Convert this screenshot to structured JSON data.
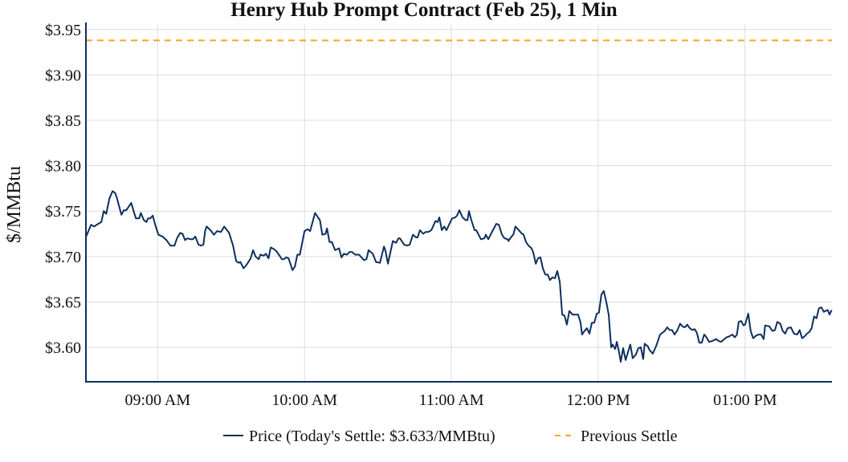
{
  "chart_data": {
    "type": "line",
    "title": "Henry Hub Prompt Contract (Feb 25), 1 Min",
    "xlabel": "",
    "ylabel": "$/MMBtu",
    "x_unit": "minutes since 09:00 AM",
    "xlim": [
      -29.3,
      275.5
    ],
    "ylim": [
      3.562,
      3.956
    ],
    "grid": true,
    "legend_position": "bottom-center",
    "y_ticks": [
      3.6,
      3.65,
      3.7,
      3.75,
      3.8,
      3.85,
      3.9,
      3.95
    ],
    "y_tick_labels": [
      "$3.60",
      "$3.65",
      "$3.70",
      "$3.75",
      "$3.80",
      "$3.85",
      "$3.90",
      "$3.95"
    ],
    "x_ticks": [
      0,
      60,
      120,
      180,
      240
    ],
    "x_tick_labels": [
      "09:00 AM",
      "10:00 AM",
      "11:00 AM",
      "12:00 PM",
      "01:00 PM"
    ],
    "series": [
      {
        "name": "Price (Today's Settle: $3.633/MMBtu)",
        "color": "#0d2f5e",
        "style": "solid",
        "points": [
          [
            -29.2,
            3.722
          ],
          [
            -27.2,
            3.735
          ],
          [
            -25.9,
            3.733
          ],
          [
            -24.9,
            3.735
          ],
          [
            -23,
            3.738
          ],
          [
            -22,
            3.75
          ],
          [
            -21,
            3.747
          ],
          [
            -19.7,
            3.764
          ],
          [
            -18.4,
            3.772
          ],
          [
            -17.4,
            3.77
          ],
          [
            -16.7,
            3.765
          ],
          [
            -14.8,
            3.746
          ],
          [
            -13.8,
            3.751
          ],
          [
            -12.8,
            3.751
          ],
          [
            -10.8,
            3.759
          ],
          [
            -9.8,
            3.75
          ],
          [
            -8.9,
            3.742
          ],
          [
            -7.5,
            3.742
          ],
          [
            -6.9,
            3.748
          ],
          [
            -5.6,
            3.74
          ],
          [
            -4.6,
            3.738
          ],
          [
            -3.9,
            3.742
          ],
          [
            -3,
            3.742
          ],
          [
            -2,
            3.745
          ],
          [
            -1,
            3.735
          ],
          [
            0.3,
            3.724
          ],
          [
            2,
            3.722
          ],
          [
            3.6,
            3.718
          ],
          [
            5.2,
            3.712
          ],
          [
            6.9,
            3.712
          ],
          [
            7.9,
            3.72
          ],
          [
            9.2,
            3.726
          ],
          [
            10.2,
            3.725
          ],
          [
            11.2,
            3.718
          ],
          [
            12.1,
            3.72
          ],
          [
            13.4,
            3.719
          ],
          [
            14.4,
            3.719
          ],
          [
            15.4,
            3.722
          ],
          [
            16.7,
            3.713
          ],
          [
            17.7,
            3.712
          ],
          [
            18.7,
            3.713
          ],
          [
            19.4,
            3.728
          ],
          [
            20,
            3.733
          ],
          [
            21.6,
            3.729
          ],
          [
            23,
            3.724
          ],
          [
            24.3,
            3.728
          ],
          [
            25.9,
            3.727
          ],
          [
            27.2,
            3.733
          ],
          [
            29.2,
            3.726
          ],
          [
            30.8,
            3.712
          ],
          [
            32.1,
            3.695
          ],
          [
            33.1,
            3.693
          ],
          [
            33.8,
            3.694
          ],
          [
            35.1,
            3.687
          ],
          [
            36.4,
            3.691
          ],
          [
            38,
            3.698
          ],
          [
            39,
            3.707
          ],
          [
            40,
            3.7
          ],
          [
            41.3,
            3.697
          ],
          [
            42,
            3.702
          ],
          [
            43.3,
            3.701
          ],
          [
            44.3,
            3.703
          ],
          [
            45.3,
            3.698
          ],
          [
            46.2,
            3.71
          ],
          [
            47.6,
            3.708
          ],
          [
            48.5,
            3.706
          ],
          [
            49.5,
            3.702
          ],
          [
            50.8,
            3.697
          ],
          [
            51.5,
            3.697
          ],
          [
            52.5,
            3.699
          ],
          [
            53.5,
            3.698
          ],
          [
            55.1,
            3.685
          ],
          [
            56.1,
            3.689
          ],
          [
            57.1,
            3.702
          ],
          [
            58.1,
            3.702
          ],
          [
            60,
            3.728
          ],
          [
            61.3,
            3.73
          ],
          [
            62.3,
            3.728
          ],
          [
            64.3,
            3.748
          ],
          [
            65.3,
            3.744
          ],
          [
            66.3,
            3.74
          ],
          [
            67.3,
            3.724
          ],
          [
            68.6,
            3.725
          ],
          [
            69.2,
            3.731
          ],
          [
            70.2,
            3.716
          ],
          [
            71.2,
            3.716
          ],
          [
            72.5,
            3.707
          ],
          [
            74.1,
            3.709
          ],
          [
            75.1,
            3.699
          ],
          [
            76.1,
            3.703
          ],
          [
            77.4,
            3.702
          ],
          [
            78.4,
            3.705
          ],
          [
            79.4,
            3.705
          ],
          [
            80.7,
            3.702
          ],
          [
            82.3,
            3.702
          ],
          [
            84.3,
            3.696
          ],
          [
            85.3,
            3.697
          ],
          [
            86.2,
            3.707
          ],
          [
            87.9,
            3.703
          ],
          [
            89.2,
            3.694
          ],
          [
            90.8,
            3.693
          ],
          [
            92.5,
            3.711
          ],
          [
            93.1,
            3.706
          ],
          [
            94.1,
            3.692
          ],
          [
            96.1,
            3.717
          ],
          [
            97.4,
            3.715
          ],
          [
            98.4,
            3.72
          ],
          [
            99.0,
            3.72
          ],
          [
            100.7,
            3.713
          ],
          [
            102.0,
            3.712
          ],
          [
            103.0,
            3.713
          ],
          [
            104.3,
            3.724
          ],
          [
            105.6,
            3.721
          ],
          [
            106.2,
            3.721
          ],
          [
            107.2,
            3.729
          ],
          [
            108.5,
            3.725
          ],
          [
            109.5,
            3.727
          ],
          [
            110.5,
            3.727
          ],
          [
            111.8,
            3.729
          ],
          [
            112.5,
            3.733
          ],
          [
            113.5,
            3.739
          ],
          [
            114.4,
            3.738
          ],
          [
            115.1,
            3.743
          ],
          [
            116.1,
            3.729
          ],
          [
            117.1,
            3.733
          ],
          [
            118.0,
            3.729
          ],
          [
            120.3,
            3.742
          ],
          [
            121.6,
            3.743
          ],
          [
            122.3,
            3.745
          ],
          [
            123.3,
            3.751
          ],
          [
            124.6,
            3.743
          ],
          [
            125.9,
            3.74
          ],
          [
            126.6,
            3.74
          ],
          [
            127.2,
            3.75
          ],
          [
            128.2,
            3.74
          ],
          [
            129.5,
            3.729
          ],
          [
            130.2,
            3.729
          ],
          [
            132.1,
            3.719
          ],
          [
            133.5,
            3.72
          ],
          [
            134.1,
            3.724
          ],
          [
            135.1,
            3.719
          ],
          [
            136.4,
            3.726
          ],
          [
            138.4,
            3.736
          ],
          [
            139.4,
            3.735
          ],
          [
            140.7,
            3.724
          ],
          [
            141.7,
            3.72
          ],
          [
            143.0,
            3.719
          ],
          [
            143.3,
            3.717
          ],
          [
            144.6,
            3.722
          ],
          [
            145.3,
            3.724
          ],
          [
            146.2,
            3.733
          ],
          [
            147.9,
            3.728
          ],
          [
            148.5,
            3.726
          ],
          [
            149.5,
            3.724
          ],
          [
            150.5,
            3.716
          ],
          [
            151.5,
            3.712
          ],
          [
            152.8,
            3.709
          ],
          [
            153.5,
            3.704
          ],
          [
            154.5,
            3.692
          ],
          [
            155.4,
            3.698
          ],
          [
            156.4,
            3.699
          ],
          [
            157.4,
            3.687
          ],
          [
            158.4,
            3.68
          ],
          [
            159.4,
            3.68
          ],
          [
            160.3,
            3.674
          ],
          [
            161.3,
            3.677
          ],
          [
            162.3,
            3.676
          ],
          [
            163.3,
            3.684
          ],
          [
            164.3,
            3.672
          ],
          [
            165.3,
            3.636
          ],
          [
            166.2,
            3.635
          ],
          [
            167.2,
            3.625
          ],
          [
            168.2,
            3.64
          ],
          [
            169.5,
            3.636
          ],
          [
            170.8,
            3.636
          ],
          [
            171.8,
            3.636
          ],
          [
            172.8,
            3.627
          ],
          [
            173.4,
            3.614
          ],
          [
            174.4,
            3.618
          ],
          [
            175.4,
            3.621
          ],
          [
            176.4,
            3.615
          ],
          [
            177.4,
            3.627
          ],
          [
            178.4,
            3.627
          ],
          [
            179.4,
            3.637
          ],
          [
            180.3,
            3.638
          ],
          [
            181.3,
            3.658
          ],
          [
            182.3,
            3.662
          ],
          [
            183.3,
            3.65
          ],
          [
            184.3,
            3.636
          ],
          [
            185.3,
            3.6
          ],
          [
            185.9,
            3.603
          ],
          [
            186.9,
            3.598
          ],
          [
            187.6,
            3.606
          ],
          [
            188.5,
            3.595
          ],
          [
            189.2,
            3.584
          ],
          [
            190.2,
            3.599
          ],
          [
            191.2,
            3.586
          ],
          [
            193.1,
            3.603
          ],
          [
            194.1,
            3.588
          ],
          [
            195.4,
            3.592
          ],
          [
            196.4,
            3.599
          ],
          [
            197.4,
            3.6
          ],
          [
            198.4,
            3.587
          ],
          [
            199.0,
            3.604
          ],
          [
            200.3,
            3.601
          ],
          [
            201.0,
            3.597
          ],
          [
            202.3,
            3.593
          ],
          [
            203.6,
            3.601
          ],
          [
            205.3,
            3.614
          ],
          [
            206.2,
            3.616
          ],
          [
            207.2,
            3.618
          ],
          [
            208.2,
            3.622
          ],
          [
            209.2,
            3.619
          ],
          [
            210.2,
            3.619
          ],
          [
            211.2,
            3.614
          ],
          [
            212.2,
            3.618
          ],
          [
            213.5,
            3.626
          ],
          [
            214.4,
            3.623
          ],
          [
            215.4,
            3.622
          ],
          [
            216.4,
            3.625
          ],
          [
            217.1,
            3.622
          ],
          [
            218.4,
            3.619
          ],
          [
            219.4,
            3.62
          ],
          [
            220.3,
            3.616
          ],
          [
            221.3,
            3.605
          ],
          [
            222.3,
            3.605
          ],
          [
            223.3,
            3.614
          ],
          [
            224.0,
            3.612
          ],
          [
            225.3,
            3.606
          ],
          [
            226.6,
            3.607
          ],
          [
            228.2,
            3.609
          ],
          [
            229.2,
            3.607
          ],
          [
            230.2,
            3.606
          ],
          [
            231.5,
            3.609
          ],
          [
            232.5,
            3.611
          ],
          [
            233.5,
            3.612
          ],
          [
            234.8,
            3.614
          ],
          [
            235.8,
            3.611
          ],
          [
            236.7,
            3.614
          ],
          [
            237.4,
            3.628
          ],
          [
            238.4,
            3.629
          ],
          [
            239.4,
            3.624
          ],
          [
            240.0,
            3.625
          ],
          [
            241.3,
            3.637
          ],
          [
            242.3,
            3.618
          ],
          [
            243.3,
            3.61
          ],
          [
            244.6,
            3.613
          ],
          [
            245.6,
            3.614
          ],
          [
            246.6,
            3.614
          ],
          [
            247.6,
            3.609
          ],
          [
            248.2,
            3.624
          ],
          [
            249.9,
            3.623
          ],
          [
            251.2,
            3.618
          ],
          [
            252.2,
            3.619
          ],
          [
            253.2,
            3.628
          ],
          [
            254.4,
            3.626
          ],
          [
            255.4,
            3.618
          ],
          [
            256.4,
            3.615
          ],
          [
            257.4,
            3.621
          ],
          [
            258.7,
            3.622
          ],
          [
            260.0,
            3.615
          ],
          [
            261.3,
            3.614
          ],
          [
            262.3,
            3.619
          ],
          [
            263.3,
            3.61
          ],
          [
            264.3,
            3.612
          ],
          [
            265.3,
            3.615
          ],
          [
            266.3,
            3.617
          ],
          [
            267.2,
            3.621
          ],
          [
            268.2,
            3.634
          ],
          [
            269.2,
            3.632
          ],
          [
            270.2,
            3.643
          ],
          [
            271.2,
            3.644
          ],
          [
            272.2,
            3.639
          ],
          [
            272.8,
            3.64
          ],
          [
            273.8,
            3.641
          ],
          [
            274.5,
            3.636
          ],
          [
            275.4,
            3.641
          ]
        ]
      },
      {
        "name": "Previous Settle",
        "color": "#f5a623",
        "style": "dashed",
        "value": 3.938
      }
    ]
  }
}
